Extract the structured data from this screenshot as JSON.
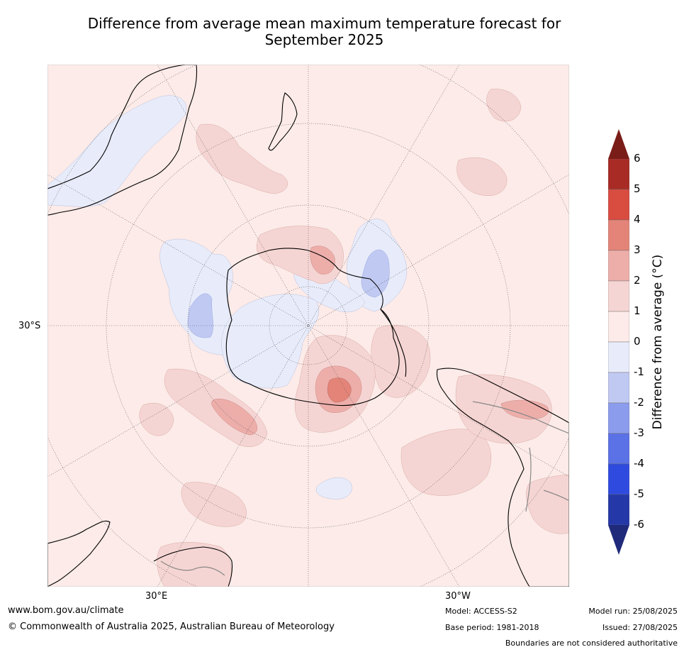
{
  "title_line1": "Difference from average mean maximum temperature forecast for",
  "title_line2": "September 2025",
  "map": {
    "graticule_labels": {
      "lat_30s": "30°S",
      "lon_30e": "30°E",
      "lon_30w": "30°W"
    },
    "colors": {
      "ocean_land_base": "#fcebe8",
      "neg_0_1": "#e8ecfa",
      "neg_1_2": "#c0c9f2",
      "pos_1_2": "#f5d5d3",
      "pos_2_3": "#edaeaa",
      "pos_3_4": "#e48478",
      "coastline": "#000000",
      "borders": "#888888",
      "graticule": "#555555"
    }
  },
  "colorbar": {
    "label": "Difference from average (°C)",
    "levels": [
      "6",
      "5",
      "4",
      "3",
      "2",
      "1",
      "0",
      "-1",
      "-2",
      "-3",
      "-4",
      "-5",
      "-6"
    ],
    "colors_top_to_bottom": [
      "#a92b25",
      "#d94c40",
      "#e48478",
      "#edaeaa",
      "#f5d5d3",
      "#fcebe8",
      "#e8ecfa",
      "#c0c9f2",
      "#8c9ced",
      "#5b71e6",
      "#2f4bdf",
      "#2438a8"
    ],
    "over_color": "#7a1d18",
    "under_color": "#1f2a7a"
  },
  "footer": {
    "url": "www.bom.gov.au/climate",
    "copyright": "© Commonwealth of Australia 2025, Australian Bureau of Meteorology",
    "model": "Model: ACCESS-S2",
    "base_period": "Base period: 1981-2018",
    "model_run": "Model run: 25/08/2025",
    "issued": "Issued: 27/08/2025",
    "disclaimer": "Boundaries are not considered authoritative"
  }
}
